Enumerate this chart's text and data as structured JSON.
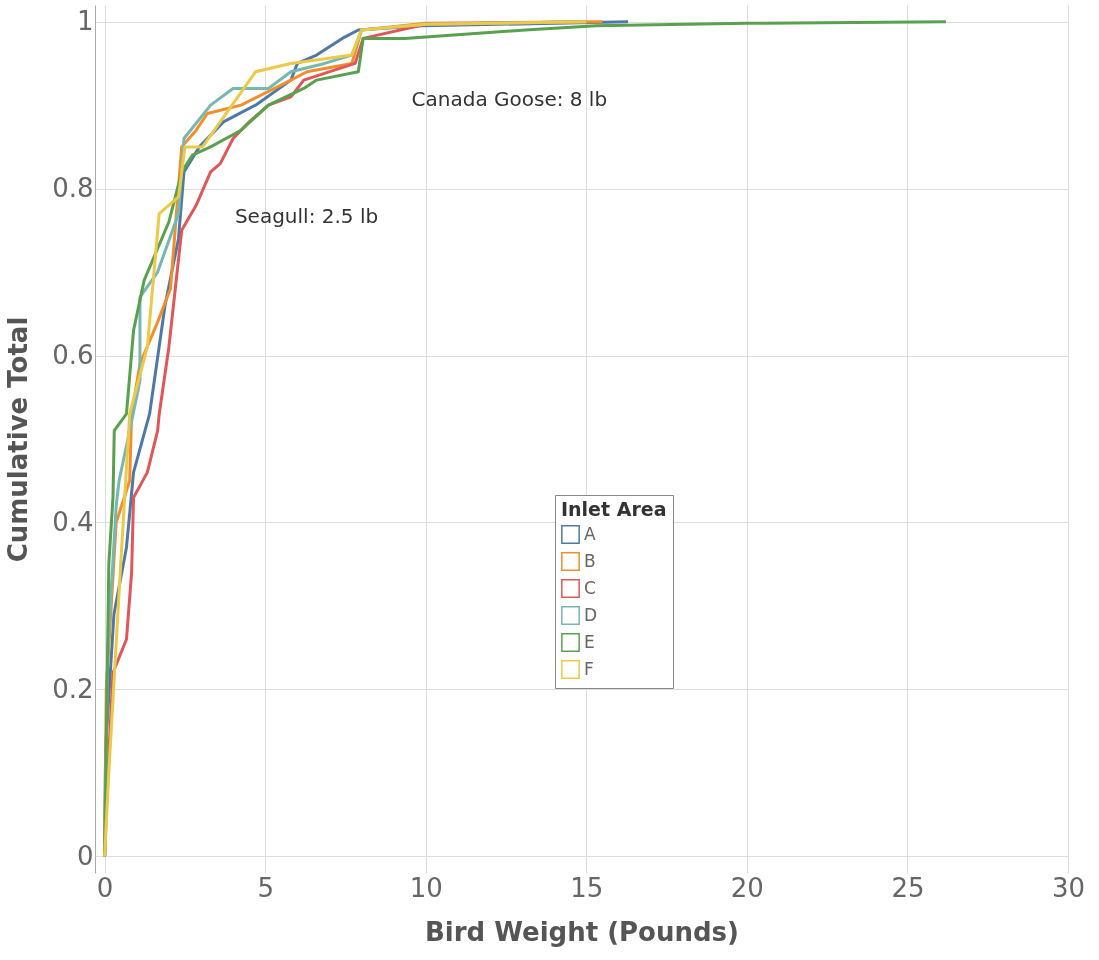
{
  "chart_data": {
    "type": "line",
    "xlabel": "Bird Weight (Pounds)",
    "ylabel": "Cumulative Total",
    "legend_title": "Inlet Area",
    "xlim": [
      -0.3,
      30
    ],
    "xticks": [
      0,
      5,
      10,
      15,
      20,
      25,
      30
    ],
    "ylim": [
      -0.02,
      1.02
    ],
    "yticks": [
      0,
      0.2,
      0.4,
      0.6,
      0.8,
      1
    ],
    "grid": true,
    "legend": "bottom right",
    "line_style": "solid",
    "marker": "none",
    "annotations": [
      {
        "text": "Seagull: 2.5 lb",
        "x": 2.5,
        "y": 0.82
      },
      {
        "text": "Canada Goose: 8 lb",
        "x": 8,
        "y": 0.96
      }
    ],
    "series": [
      {
        "name": "A",
        "color": "#4e79a7",
        "x": [
          0,
          0.03,
          0.29,
          0.68,
          0.9,
          1.4,
          1.88,
          2.3,
          2.47,
          2.95,
          3.7,
          4.7,
          5.8,
          6.0,
          6.6,
          7.4,
          7.9,
          9.9,
          16.3
        ],
        "values": [
          0,
          0.13,
          0.29,
          0.37,
          0.46,
          0.53,
          0.66,
          0.74,
          0.82,
          0.85,
          0.88,
          0.9,
          0.93,
          0.95,
          0.96,
          0.98,
          0.99,
          0.995,
          1
        ]
      },
      {
        "name": "B",
        "color": "#f28e2b",
        "x": [
          0,
          0.05,
          0.36,
          0.78,
          0.84,
          1.1,
          1.65,
          2.05,
          2.4,
          2.85,
          3.2,
          4.25,
          5.8,
          6.3,
          7.7,
          8.0,
          10,
          15.5
        ],
        "values": [
          0,
          0.2,
          0.4,
          0.45,
          0.53,
          0.59,
          0.64,
          0.68,
          0.85,
          0.87,
          0.89,
          0.9,
          0.93,
          0.94,
          0.95,
          0.99,
          0.998,
          1
        ]
      },
      {
        "name": "C",
        "color": "#e15759",
        "x": [
          0,
          0.1,
          0.26,
          0.68,
          0.84,
          0.9,
          1.33,
          1.65,
          1.7,
          2.0,
          2.4,
          2.85,
          3.3,
          3.6,
          4.0,
          4.5,
          5.1,
          5.8,
          6.2,
          7.8,
          8.05,
          10,
          15
        ],
        "values": [
          0,
          0.1,
          0.22,
          0.26,
          0.34,
          0.43,
          0.46,
          0.51,
          0.53,
          0.61,
          0.75,
          0.78,
          0.82,
          0.83,
          0.86,
          0.88,
          0.9,
          0.91,
          0.93,
          0.95,
          0.98,
          0.997,
          1
        ]
      },
      {
        "name": "D",
        "color": "#76b7b2",
        "x": [
          0,
          0.1,
          0.36,
          0.45,
          0.78,
          1.1,
          1.1,
          1.65,
          2.3,
          2.47,
          3.3,
          4.0,
          5.1,
          5.8,
          6.85,
          7.7,
          8.0,
          10,
          15
        ],
        "values": [
          0,
          0.25,
          0.42,
          0.45,
          0.51,
          0.57,
          0.67,
          0.7,
          0.77,
          0.86,
          0.9,
          0.92,
          0.92,
          0.94,
          0.95,
          0.96,
          0.99,
          0.997,
          1
        ]
      },
      {
        "name": "E",
        "color": "#59a14f",
        "x": [
          0,
          0.13,
          0.26,
          0.3,
          0.68,
          0.9,
          1.23,
          2.0,
          2.4,
          2.73,
          3.3,
          4.25,
          5.1,
          6.2,
          6.6,
          7.9,
          8.05,
          9.35,
          13.1,
          15.3,
          20,
          26.2
        ],
        "values": [
          0,
          0.35,
          0.43,
          0.51,
          0.53,
          0.63,
          0.69,
          0.76,
          0.82,
          0.84,
          0.85,
          0.87,
          0.9,
          0.92,
          0.93,
          0.94,
          0.98,
          0.98,
          0.99,
          0.995,
          0.998,
          1
        ]
      },
      {
        "name": "F",
        "color": "#edc948",
        "x": [
          0,
          0.13,
          0.5,
          0.78,
          1.33,
          1.7,
          2.3,
          2.5,
          3.05,
          4.7,
          5.8,
          7.7,
          8.0,
          10,
          15
        ],
        "values": [
          0,
          0.1,
          0.35,
          0.53,
          0.61,
          0.77,
          0.79,
          0.85,
          0.85,
          0.94,
          0.95,
          0.96,
          0.99,
          0.997,
          1
        ]
      }
    ]
  }
}
